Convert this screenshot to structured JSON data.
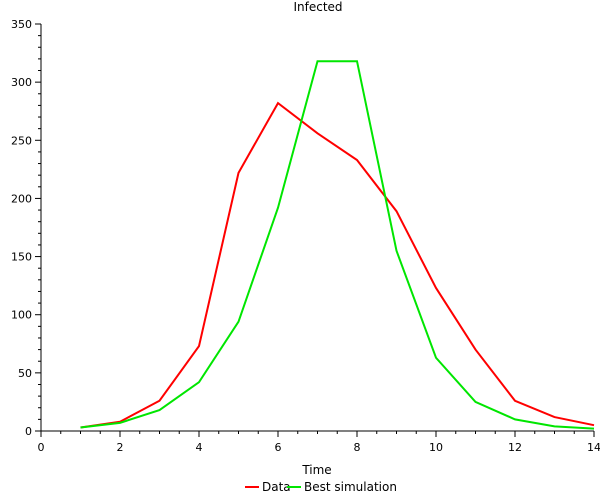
{
  "chart_data": {
    "type": "line",
    "title": "Infected",
    "xlabel": "Time",
    "ylabel": "",
    "xlim": [
      0,
      14
    ],
    "ylim": [
      0,
      350
    ],
    "x_ticks": [
      0,
      2,
      4,
      6,
      8,
      10,
      12,
      14
    ],
    "y_ticks": [
      0,
      50,
      100,
      150,
      200,
      250,
      300,
      350
    ],
    "legend_position": "bottom-center",
    "grid": false,
    "series": [
      {
        "name": "Data",
        "color": "#ff0000",
        "x": [
          1,
          2,
          3,
          4,
          5,
          6,
          7,
          8,
          9,
          10,
          11,
          12,
          13,
          14
        ],
        "y": [
          3,
          8,
          26,
          73,
          222,
          282,
          256,
          233,
          189,
          123,
          70,
          26,
          12,
          5
        ]
      },
      {
        "name": "Best simulation",
        "color": "#00e600",
        "x": [
          1,
          2,
          3,
          4,
          5,
          6,
          7,
          8,
          9,
          10,
          11,
          12,
          13,
          14
        ],
        "y": [
          3,
          7,
          18,
          42,
          94,
          192,
          318,
          318,
          155,
          63,
          25,
          10,
          4,
          2
        ]
      }
    ]
  }
}
